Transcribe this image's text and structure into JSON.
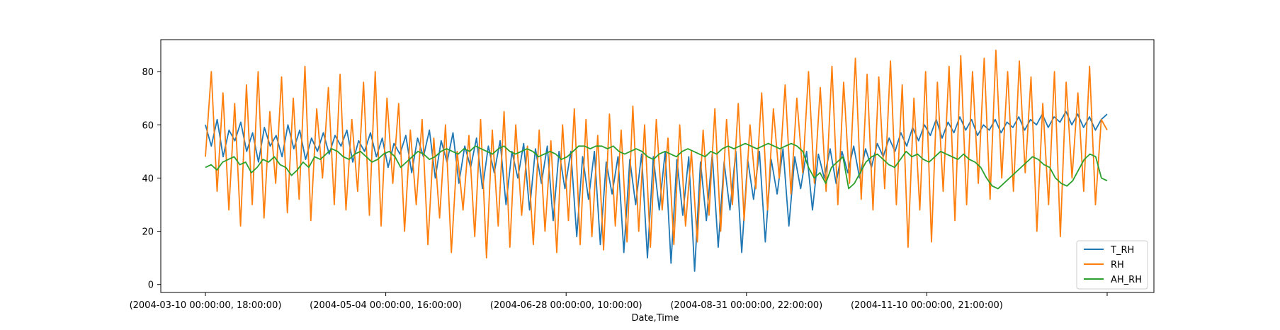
{
  "chart_data": {
    "type": "line",
    "xlabel": "Date,Time",
    "ylabel": "",
    "ylim": [
      -3,
      92
    ],
    "y_ticks": [
      0,
      20,
      40,
      60,
      80
    ],
    "x_tick_labels": [
      "(2004-03-10 00:00:00, 18:00:00)",
      "(2004-05-04 00:00:00, 16:00:00)",
      "(2004-06-28 00:00:00, 10:00:00)",
      "(2004-08-31 00:00:00, 22:00:00)",
      "(2004-11-10 00:00:00, 21:00:00)",
      ""
    ],
    "x_tick_positions": [
      0,
      0.2,
      0.4,
      0.6,
      0.8,
      1.0
    ],
    "grid": false,
    "legend_position": "lower-right",
    "series": [
      {
        "name": "T_RH",
        "color": "#1f77b4",
        "values": [
          60,
          52,
          62,
          48,
          58,
          54,
          61,
          50,
          57,
          46,
          59,
          52,
          56,
          48,
          60,
          51,
          58,
          47,
          55,
          50,
          57,
          49,
          56,
          52,
          58,
          46,
          54,
          50,
          57,
          48,
          55,
          44,
          53,
          49,
          56,
          42,
          55,
          48,
          58,
          40,
          54,
          46,
          57,
          38,
          52,
          44,
          55,
          36,
          52,
          42,
          54,
          30,
          50,
          40,
          53,
          28,
          51,
          38,
          52,
          24,
          50,
          36,
          50,
          18,
          48,
          32,
          50,
          15,
          46,
          34,
          48,
          12,
          47,
          30,
          49,
          10,
          48,
          28,
          50,
          8,
          47,
          26,
          48,
          5,
          46,
          24,
          49,
          14,
          46,
          28,
          50,
          12,
          47,
          32,
          50,
          16,
          47,
          34,
          51,
          22,
          48,
          36,
          50,
          28,
          49,
          40,
          51,
          38,
          50,
          42,
          52,
          40,
          51,
          44,
          53,
          48,
          55,
          50,
          57,
          52,
          59,
          54,
          60,
          56,
          62,
          55,
          61,
          57,
          63,
          58,
          62,
          56,
          60,
          58,
          62,
          57,
          61,
          59,
          63,
          58,
          62,
          60,
          64,
          59,
          63,
          61,
          65,
          60,
          64,
          59,
          63,
          58,
          62,
          64
        ]
      },
      {
        "name": "RH",
        "color": "#ff7f0e",
        "values": [
          48,
          80,
          35,
          72,
          28,
          68,
          22,
          75,
          30,
          80,
          25,
          65,
          38,
          78,
          27,
          70,
          32,
          82,
          24,
          66,
          40,
          74,
          30,
          79,
          28,
          62,
          35,
          76,
          26,
          80,
          22,
          70,
          38,
          68,
          20,
          58,
          30,
          62,
          15,
          55,
          25,
          60,
          12,
          50,
          28,
          56,
          18,
          62,
          10,
          58,
          22,
          65,
          14,
          60,
          26,
          52,
          15,
          58,
          20,
          54,
          12,
          60,
          24,
          66,
          15,
          62,
          18,
          56,
          13,
          64,
          22,
          58,
          16,
          67,
          20,
          60,
          14,
          62,
          28,
          55,
          15,
          60,
          22,
          50,
          16,
          58,
          26,
          66,
          20,
          62,
          30,
          68,
          24,
          60,
          36,
          72,
          28,
          66,
          40,
          75,
          34,
          70,
          42,
          80,
          38,
          74,
          35,
          82,
          30,
          76,
          38,
          85,
          32,
          79,
          28,
          78,
          36,
          84,
          30,
          75,
          14,
          70,
          28,
          80,
          16,
          76,
          35,
          82,
          24,
          86,
          30,
          80,
          38,
          85,
          32,
          88,
          40,
          80,
          35,
          84,
          42,
          78,
          20,
          68,
          30,
          80,
          18,
          76,
          40,
          72,
          35,
          82,
          30,
          62,
          58
        ]
      },
      {
        "name": "AH_RH",
        "color": "#2ca02c",
        "values": [
          44,
          45,
          43,
          46,
          47,
          48,
          45,
          46,
          42,
          44,
          47,
          46,
          48,
          45,
          44,
          41,
          43,
          46,
          44,
          48,
          47,
          49,
          51,
          50,
          48,
          47,
          49,
          50,
          48,
          46,
          47,
          49,
          50,
          48,
          44,
          46,
          48,
          50,
          49,
          47,
          48,
          50,
          51,
          50,
          49,
          51,
          50,
          52,
          51,
          50,
          49,
          51,
          52,
          50,
          49,
          50,
          51,
          50,
          48,
          49,
          50,
          49,
          47,
          48,
          50,
          52,
          52,
          51,
          52,
          52,
          51,
          52,
          50,
          49,
          50,
          51,
          50,
          48,
          47,
          49,
          50,
          49,
          48,
          50,
          51,
          50,
          49,
          48,
          50,
          49,
          51,
          52,
          51,
          52,
          53,
          52,
          51,
          52,
          53,
          52,
          51,
          52,
          53,
          52,
          50,
          44,
          40,
          42,
          38,
          44,
          46,
          48,
          36,
          38,
          42,
          46,
          48,
          49,
          47,
          45,
          44,
          47,
          50,
          48,
          49,
          47,
          46,
          48,
          50,
          49,
          48,
          47,
          49,
          47,
          46,
          44,
          40,
          37,
          36,
          38,
          40,
          42,
          44,
          46,
          48,
          47,
          45,
          44,
          40,
          38,
          37,
          39,
          43,
          47,
          49,
          48,
          40,
          39
        ]
      }
    ]
  }
}
